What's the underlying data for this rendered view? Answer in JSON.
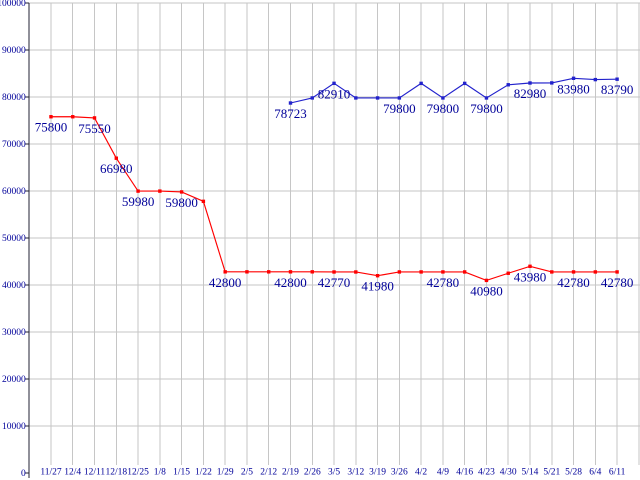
{
  "page": {
    "background": "#ffffff"
  },
  "chart_data": {
    "type": "line",
    "title": "",
    "xlabel": "",
    "ylabel": "",
    "legend": "none",
    "grid": true,
    "ylim": [
      0,
      100000
    ],
    "ytick_values": [
      0,
      10000,
      20000,
      30000,
      40000,
      50000,
      60000,
      70000,
      80000,
      90000,
      100000
    ],
    "ytick_labels": [
      "0",
      "10000",
      "20000",
      "30000",
      "40000",
      "50000",
      "60000",
      "70000",
      "80000",
      "90000",
      "100000"
    ],
    "categories": [
      "11/27",
      "12/4",
      "12/11",
      "12/18",
      "12/25",
      "1/8",
      "1/15",
      "1/22",
      "1/29",
      "2/5",
      "2/12",
      "2/19",
      "2/26",
      "3/5",
      "3/12",
      "3/19",
      "3/26",
      "4/2",
      "4/9",
      "4/16",
      "4/23",
      "4/30",
      "5/14",
      "5/21",
      "5/28",
      "6/4",
      "6/11"
    ],
    "colors": {
      "grid": "#c6c6c6",
      "axis": "#222233",
      "text": "#000099"
    },
    "series": [
      {
        "name": "red",
        "color": "#ff0000",
        "values": [
          75800,
          75800,
          75550,
          66980,
          59980,
          59980,
          59800,
          57800,
          42800,
          42800,
          42800,
          42800,
          42800,
          42770,
          42770,
          41980,
          42780,
          42780,
          42780,
          42780,
          40980,
          42500,
          43980,
          42780,
          42780,
          42780,
          42780
        ],
        "point_labels": {
          "0": "75800",
          "2": "75550",
          "3": "66980",
          "4": "59980",
          "6": "59800",
          "8": "42800",
          "11": "42800",
          "13": "42770",
          "15": "41980",
          "18": "42780",
          "20": "40980",
          "22": "43980",
          "24": "42780",
          "26": "42780"
        }
      },
      {
        "name": "blue",
        "color": "#2222cc",
        "values": [
          null,
          null,
          null,
          null,
          null,
          null,
          null,
          null,
          null,
          null,
          null,
          78723,
          79800,
          82910,
          79800,
          79800,
          79800,
          82900,
          79800,
          82900,
          79800,
          82600,
          82980,
          83000,
          83980,
          83700,
          83790
        ],
        "point_labels": {
          "11": "78723",
          "13": "82910",
          "16": "79800",
          "18": "79800",
          "20": "79800",
          "22": "82980",
          "24": "83980",
          "26": "83790"
        }
      }
    ]
  }
}
